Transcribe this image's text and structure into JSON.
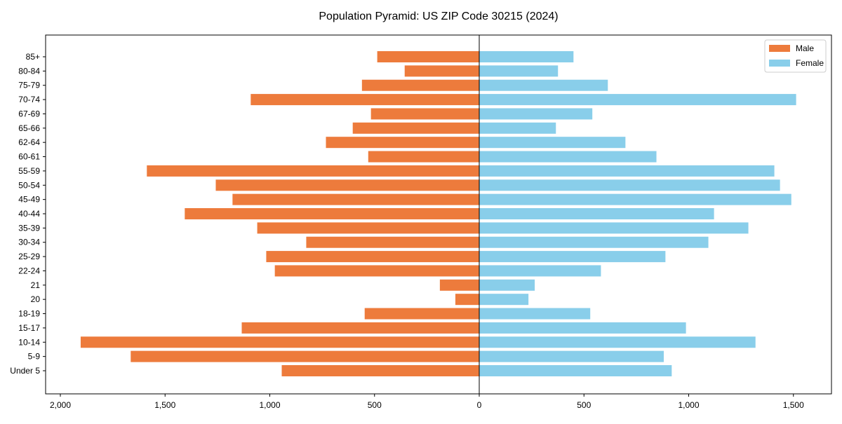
{
  "chart_data": {
    "type": "bar",
    "orientation": "horizontal",
    "title": "Population Pyramid: US ZIP Code 30215 (2024)",
    "xlabel": "",
    "ylabel": "",
    "xlim": [
      -2050,
      1700
    ],
    "xticks": [
      -2000,
      -1500,
      -1000,
      -500,
      0,
      500,
      1000,
      1500
    ],
    "xtick_labels": [
      "2,000",
      "1,500",
      "1,000",
      "500",
      "0",
      "500",
      "1,000",
      "1,500"
    ],
    "legend_position": "top-right",
    "categories": [
      "Under 5",
      "5-9",
      "10-14",
      "15-17",
      "18-19",
      "20",
      "21",
      "22-24",
      "25-29",
      "30-34",
      "35-39",
      "40-44",
      "45-49",
      "50-54",
      "55-59",
      "60-61",
      "62-64",
      "65-66",
      "67-69",
      "70-74",
      "75-79",
      "80-84",
      "85+"
    ],
    "series": [
      {
        "name": "Male",
        "color": "#ED7B3C",
        "values": [
          943,
          1664,
          1903,
          1134,
          547,
          114,
          188,
          976,
          1017,
          826,
          1060,
          1406,
          1178,
          1258,
          1587,
          530,
          732,
          604,
          517,
          1091,
          560,
          356,
          487
        ]
      },
      {
        "name": "Female",
        "color": "#89CEEA",
        "values": [
          919,
          881,
          1319,
          987,
          530,
          235,
          265,
          581,
          889,
          1094,
          1285,
          1121,
          1490,
          1436,
          1409,
          846,
          698,
          366,
          540,
          1513,
          614,
          376,
          450
        ]
      }
    ]
  }
}
